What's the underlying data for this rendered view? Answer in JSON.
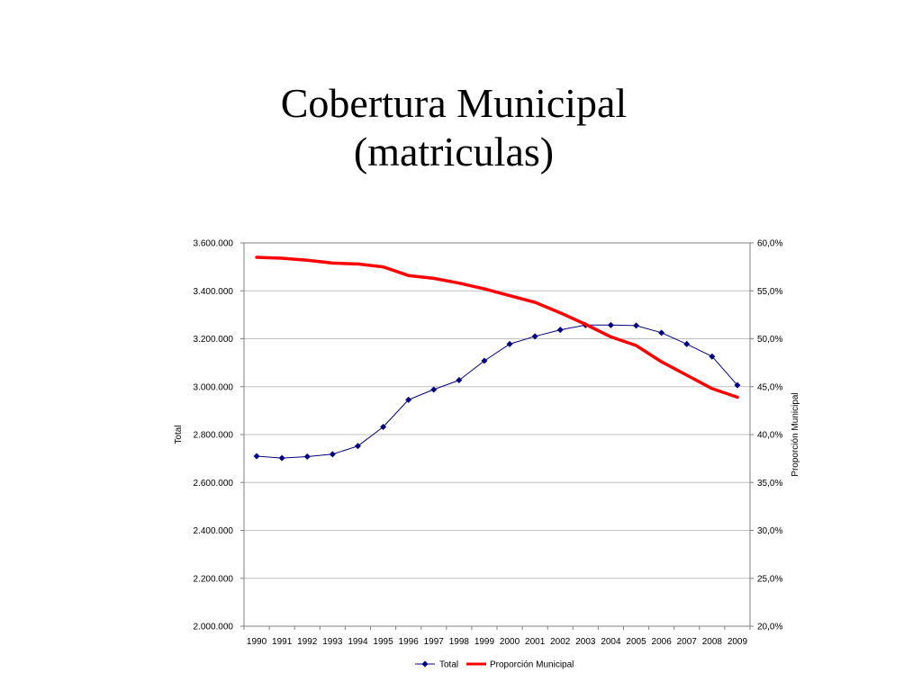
{
  "slide": {
    "title_line1": "Cobertura Municipal",
    "title_line2": "(matriculas)"
  },
  "chart_data": {
    "type": "line",
    "x": [
      "1990",
      "1991",
      "1992",
      "1993",
      "1994",
      "1995",
      "1996",
      "1997",
      "1998",
      "1999",
      "2000",
      "2001",
      "2002",
      "2003",
      "2004",
      "2005",
      "2006",
      "2007",
      "2008",
      "2009"
    ],
    "series": [
      {
        "name": "Total",
        "axis": "left",
        "color": "#000080",
        "marker": "diamond",
        "values": [
          2710000,
          2702000,
          2708000,
          2718000,
          2752000,
          2832000,
          2945000,
          2988000,
          3027000,
          3108000,
          3178000,
          3210000,
          3237000,
          3257000,
          3257000,
          3255000,
          3225000,
          3178000,
          3126000,
          3006000
        ]
      },
      {
        "name": "Proporción Municipal",
        "axis": "right",
        "color": "#ff0000",
        "marker": "none",
        "values": [
          58.5,
          58.4,
          58.2,
          57.9,
          57.8,
          57.5,
          56.6,
          56.3,
          55.8,
          55.2,
          54.5,
          53.8,
          52.7,
          51.5,
          50.2,
          49.3,
          47.6,
          46.2,
          44.8,
          43.9
        ]
      }
    ],
    "y_left": {
      "label": "Total",
      "range": [
        2000000,
        3600000
      ],
      "ticks": [
        "2.000.000",
        "2.200.000",
        "2.400.000",
        "2.600.000",
        "2.800.000",
        "3.000.000",
        "3.200.000",
        "3.400.000",
        "3.600.000"
      ]
    },
    "y_right": {
      "label": "Proporción Municipal",
      "range": [
        20,
        60
      ],
      "ticks": [
        "20,0%",
        "25,0%",
        "30,0%",
        "35,0%",
        "40,0%",
        "45,0%",
        "50,0%",
        "55,0%",
        "60,0%"
      ]
    },
    "grid": true,
    "legend": "bottom-center"
  }
}
